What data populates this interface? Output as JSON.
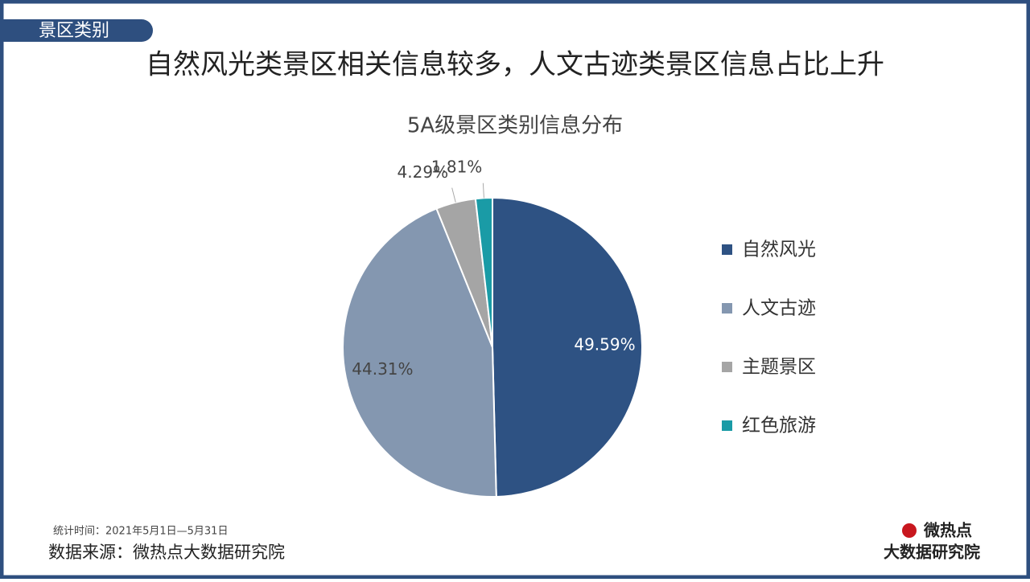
{
  "section_tag": "景区类别",
  "headline": "自然风光类景区相关信息较多，人文古迹类景区信息占比上升",
  "chart_data": {
    "type": "pie",
    "title": "5A级景区类别信息分布",
    "categories": [
      "自然风光",
      "人文古迹",
      "主题景区",
      "红色旅游"
    ],
    "values": [
      49.59,
      44.31,
      4.29,
      1.81
    ],
    "value_labels": [
      "49.59%",
      "44.31%",
      "4.29%",
      "1.81%"
    ],
    "colors": [
      "#2e5283",
      "#8497b0",
      "#a5a5a5",
      "#1a9ba6"
    ],
    "legend": "right"
  },
  "footnote": "统计时间：2021年5月1日—5月31日",
  "source": "数据来源：微热点大数据研究院",
  "logo": {
    "line1": "微热点",
    "line2": "大数据研究院"
  }
}
